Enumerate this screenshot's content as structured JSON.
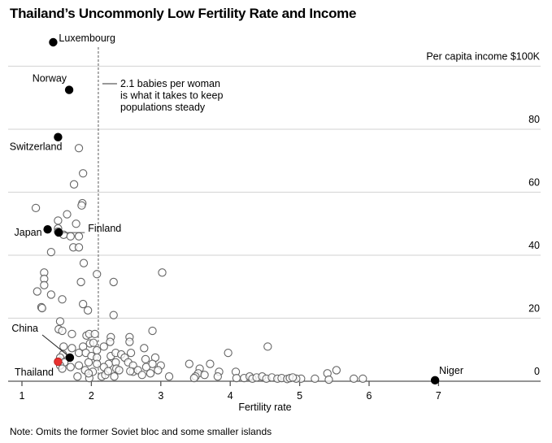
{
  "chart_data": {
    "type": "scatter",
    "title": "Thailand’s Uncommonly Low Fertility Rate and Income",
    "xlabel": "Fertility rate",
    "ylabel": "Per capita income $100K",
    "xlim": [
      0.85,
      8.5
    ],
    "ylim": [
      0,
      105
    ],
    "x_ticks": [
      1,
      2,
      3,
      4,
      5,
      6,
      7
    ],
    "y_ticks": [
      0,
      20,
      40,
      60,
      80,
      100
    ],
    "y_tick_labels": [
      "0",
      "20",
      "40",
      "60",
      "80",
      "Per capita income $100K"
    ],
    "grid": true,
    "reference_line": {
      "x": 2.1,
      "label_lines": [
        "2.1 babies per woman",
        "is what it takes to keep",
        "populations steady"
      ]
    },
    "colors": {
      "highlight": "#e8312f",
      "labeled": "#000000",
      "other_stroke": "#666666",
      "grid": "#d9d9d9",
      "axis": "#555555"
    },
    "labeled_points": [
      {
        "name": "Luxembourg",
        "x": 1.45,
        "y": 108,
        "color": "black",
        "label_pos": "right-up"
      },
      {
        "name": "Norway",
        "x": 1.68,
        "y": 92.5,
        "color": "black",
        "label_pos": "left-up"
      },
      {
        "name": "Switzerland",
        "x": 1.52,
        "y": 77.5,
        "color": "black",
        "label_pos": "below-left"
      },
      {
        "name": "Japan",
        "x": 1.37,
        "y": 48.2,
        "color": "black",
        "label_pos": "left"
      },
      {
        "name": "Finland",
        "x": 1.53,
        "y": 47.2,
        "color": "black",
        "label_pos": "right-leader"
      },
      {
        "name": "China",
        "x": 1.69,
        "y": 7.5,
        "color": "black",
        "label_pos": "up-left-leader"
      },
      {
        "name": "Thailand",
        "x": 1.52,
        "y": 6.2,
        "color": "red",
        "label_pos": "below-left"
      },
      {
        "name": "Niger",
        "x": 6.95,
        "y": 0.3,
        "color": "black",
        "label_pos": "right-up"
      }
    ],
    "points": [
      [
        1.82,
        74.0
      ],
      [
        1.88,
        66.0
      ],
      [
        1.75,
        62.5
      ],
      [
        1.87,
        56.5
      ],
      [
        1.86,
        55.8
      ],
      [
        1.2,
        55.0
      ],
      [
        1.65,
        53.0
      ],
      [
        1.52,
        51.0
      ],
      [
        1.78,
        50.0
      ],
      [
        1.52,
        48.5
      ],
      [
        1.52,
        47.5
      ],
      [
        1.6,
        46.5
      ],
      [
        1.7,
        46.0
      ],
      [
        1.82,
        46.0
      ],
      [
        1.74,
        42.5
      ],
      [
        1.82,
        42.5
      ],
      [
        1.42,
        41.0
      ],
      [
        1.89,
        37.5
      ],
      [
        1.32,
        34.5
      ],
      [
        1.32,
        32.5
      ],
      [
        1.32,
        30.5
      ],
      [
        1.85,
        31.5
      ],
      [
        2.08,
        34.0
      ],
      [
        2.32,
        31.5
      ],
      [
        3.02,
        34.5
      ],
      [
        1.22,
        28.5
      ],
      [
        1.42,
        27.5
      ],
      [
        1.58,
        26.0
      ],
      [
        1.28,
        23.5
      ],
      [
        1.29,
        23.2
      ],
      [
        1.88,
        24.5
      ],
      [
        1.95,
        22.5
      ],
      [
        2.32,
        21.0
      ],
      [
        1.55,
        19.0
      ],
      [
        1.53,
        16.5
      ],
      [
        1.58,
        16.0
      ],
      [
        1.72,
        15.0
      ],
      [
        1.93,
        14.5
      ],
      [
        1.97,
        15.0
      ],
      [
        2.05,
        15.0
      ],
      [
        2.28,
        14.0
      ],
      [
        2.88,
        16.0
      ],
      [
        2.27,
        12.5
      ],
      [
        2.55,
        14.0
      ],
      [
        1.98,
        12.0
      ],
      [
        2.03,
        12.2
      ],
      [
        1.6,
        11.0
      ],
      [
        1.72,
        10.5
      ],
      [
        1.88,
        11.0
      ],
      [
        2.08,
        9.8
      ],
      [
        2.18,
        11.0
      ],
      [
        2.55,
        12.5
      ],
      [
        2.76,
        10.5
      ],
      [
        1.59,
        8.5
      ],
      [
        1.55,
        7.5
      ],
      [
        1.82,
        9.0
      ],
      [
        1.92,
        9.0
      ],
      [
        2.0,
        8.0
      ],
      [
        2.08,
        7.5
      ],
      [
        2.28,
        8.0
      ],
      [
        2.35,
        9.0
      ],
      [
        2.43,
        8.5
      ],
      [
        2.48,
        7.5
      ],
      [
        2.57,
        9.0
      ],
      [
        2.78,
        7.0
      ],
      [
        2.92,
        7.5
      ],
      [
        3.0,
        5.0
      ],
      [
        2.53,
        6.0
      ],
      [
        2.6,
        5.0
      ],
      [
        2.35,
        6.0
      ],
      [
        2.25,
        5.5
      ],
      [
        2.08,
        5.5
      ],
      [
        2.18,
        4.5
      ],
      [
        2.36,
        4.0
      ],
      [
        2.4,
        3.5
      ],
      [
        2.6,
        3.0
      ],
      [
        2.67,
        3.5
      ],
      [
        2.79,
        4.5
      ],
      [
        2.88,
        5.5
      ],
      [
        2.96,
        3.5
      ],
      [
        1.7,
        4.5
      ],
      [
        1.61,
        6.0
      ],
      [
        1.55,
        5.0
      ],
      [
        1.58,
        4.0
      ],
      [
        1.82,
        5.0
      ],
      [
        1.96,
        6.0
      ],
      [
        2.02,
        3.0
      ],
      [
        1.97,
        1.0
      ],
      [
        1.91,
        3.5
      ],
      [
        2.15,
        1.5
      ],
      [
        2.2,
        2.0
      ],
      [
        1.96,
        2.5
      ],
      [
        1.8,
        1.5
      ],
      [
        2.24,
        3.2
      ],
      [
        2.33,
        1.5
      ],
      [
        2.56,
        3.2
      ],
      [
        2.73,
        2.0
      ],
      [
        2.85,
        2.5
      ],
      [
        3.12,
        1.5
      ],
      [
        3.41,
        5.5
      ],
      [
        3.56,
        4.0
      ],
      [
        3.54,
        2.5
      ],
      [
        3.5,
        1.5
      ],
      [
        3.48,
        1.0
      ],
      [
        3.63,
        2.0
      ],
      [
        3.71,
        5.5
      ],
      [
        3.84,
        3.0
      ],
      [
        3.82,
        1.5
      ],
      [
        3.97,
        9.0
      ],
      [
        4.08,
        3.0
      ],
      [
        4.09,
        1.0
      ],
      [
        4.2,
        1.0
      ],
      [
        4.28,
        1.5
      ],
      [
        4.32,
        0.8
      ],
      [
        4.38,
        1.2
      ],
      [
        4.46,
        1.5
      ],
      [
        4.52,
        0.8
      ],
      [
        4.54,
        11.0
      ],
      [
        4.6,
        1.2
      ],
      [
        4.68,
        0.8
      ],
      [
        4.74,
        1.0
      ],
      [
        4.82,
        0.7
      ],
      [
        4.86,
        1.0
      ],
      [
        5.02,
        0.8
      ],
      [
        5.22,
        0.8
      ],
      [
        5.4,
        2.5
      ],
      [
        5.42,
        0.5
      ],
      [
        5.53,
        3.5
      ],
      [
        5.78,
        0.8
      ],
      [
        5.91,
        0.8
      ],
      [
        4.95,
        0.8
      ],
      [
        4.9,
        1.2
      ]
    ]
  },
  "note": "Note: Omits the former Soviet bloc and some smaller islands"
}
